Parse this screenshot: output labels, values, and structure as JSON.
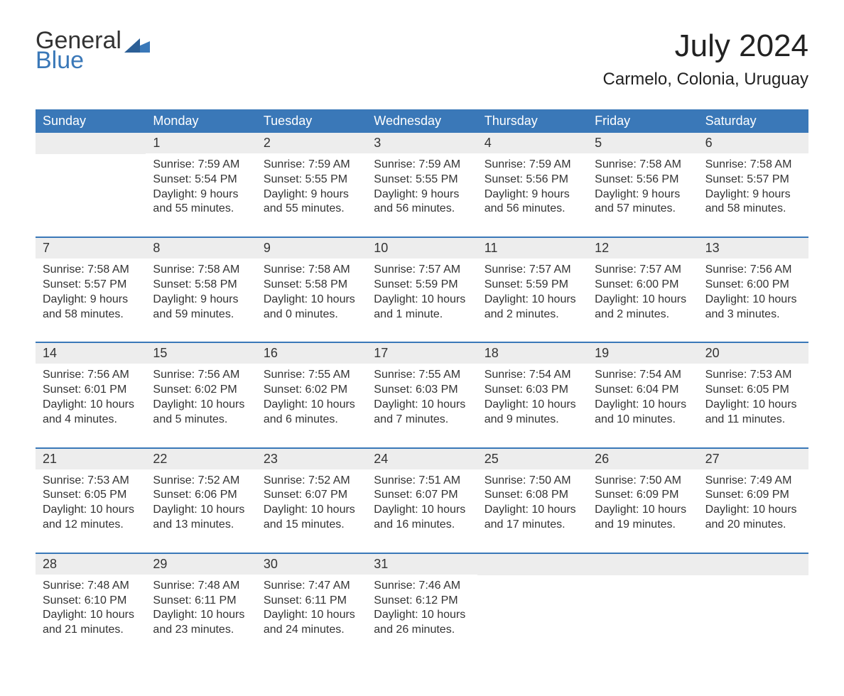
{
  "colors": {
    "accent": "#3a78b8",
    "header_text": "#ffffff",
    "daynum_bg": "#ededed",
    "text": "#333333",
    "logo_general": "#333333",
    "logo_blue": "#3a78b8",
    "background": "#ffffff"
  },
  "typography": {
    "title_fontsize": 44,
    "subtitle_fontsize": 24,
    "dayheader_fontsize": 18,
    "daynum_fontsize": 18,
    "body_fontsize": 16,
    "logo_fontsize": 34,
    "font_family": "Arial, Helvetica, sans-serif"
  },
  "logo": {
    "part1": "General",
    "part2": "Blue"
  },
  "title": "July 2024",
  "subtitle": "Carmelo, Colonia, Uruguay",
  "dayHeaders": [
    "Sunday",
    "Monday",
    "Tuesday",
    "Wednesday",
    "Thursday",
    "Friday",
    "Saturday"
  ],
  "weeks": [
    [
      {
        "blank": true
      },
      {
        "num": "1",
        "sunrise": "Sunrise: 7:59 AM",
        "sunset": "Sunset: 5:54 PM",
        "dl1": "Daylight: 9 hours",
        "dl2": "and 55 minutes."
      },
      {
        "num": "2",
        "sunrise": "Sunrise: 7:59 AM",
        "sunset": "Sunset: 5:55 PM",
        "dl1": "Daylight: 9 hours",
        "dl2": "and 55 minutes."
      },
      {
        "num": "3",
        "sunrise": "Sunrise: 7:59 AM",
        "sunset": "Sunset: 5:55 PM",
        "dl1": "Daylight: 9 hours",
        "dl2": "and 56 minutes."
      },
      {
        "num": "4",
        "sunrise": "Sunrise: 7:59 AM",
        "sunset": "Sunset: 5:56 PM",
        "dl1": "Daylight: 9 hours",
        "dl2": "and 56 minutes."
      },
      {
        "num": "5",
        "sunrise": "Sunrise: 7:58 AM",
        "sunset": "Sunset: 5:56 PM",
        "dl1": "Daylight: 9 hours",
        "dl2": "and 57 minutes."
      },
      {
        "num": "6",
        "sunrise": "Sunrise: 7:58 AM",
        "sunset": "Sunset: 5:57 PM",
        "dl1": "Daylight: 9 hours",
        "dl2": "and 58 minutes."
      }
    ],
    [
      {
        "num": "7",
        "sunrise": "Sunrise: 7:58 AM",
        "sunset": "Sunset: 5:57 PM",
        "dl1": "Daylight: 9 hours",
        "dl2": "and 58 minutes."
      },
      {
        "num": "8",
        "sunrise": "Sunrise: 7:58 AM",
        "sunset": "Sunset: 5:58 PM",
        "dl1": "Daylight: 9 hours",
        "dl2": "and 59 minutes."
      },
      {
        "num": "9",
        "sunrise": "Sunrise: 7:58 AM",
        "sunset": "Sunset: 5:58 PM",
        "dl1": "Daylight: 10 hours",
        "dl2": "and 0 minutes."
      },
      {
        "num": "10",
        "sunrise": "Sunrise: 7:57 AM",
        "sunset": "Sunset: 5:59 PM",
        "dl1": "Daylight: 10 hours",
        "dl2": "and 1 minute."
      },
      {
        "num": "11",
        "sunrise": "Sunrise: 7:57 AM",
        "sunset": "Sunset: 5:59 PM",
        "dl1": "Daylight: 10 hours",
        "dl2": "and 2 minutes."
      },
      {
        "num": "12",
        "sunrise": "Sunrise: 7:57 AM",
        "sunset": "Sunset: 6:00 PM",
        "dl1": "Daylight: 10 hours",
        "dl2": "and 2 minutes."
      },
      {
        "num": "13",
        "sunrise": "Sunrise: 7:56 AM",
        "sunset": "Sunset: 6:00 PM",
        "dl1": "Daylight: 10 hours",
        "dl2": "and 3 minutes."
      }
    ],
    [
      {
        "num": "14",
        "sunrise": "Sunrise: 7:56 AM",
        "sunset": "Sunset: 6:01 PM",
        "dl1": "Daylight: 10 hours",
        "dl2": "and 4 minutes."
      },
      {
        "num": "15",
        "sunrise": "Sunrise: 7:56 AM",
        "sunset": "Sunset: 6:02 PM",
        "dl1": "Daylight: 10 hours",
        "dl2": "and 5 minutes."
      },
      {
        "num": "16",
        "sunrise": "Sunrise: 7:55 AM",
        "sunset": "Sunset: 6:02 PM",
        "dl1": "Daylight: 10 hours",
        "dl2": "and 6 minutes."
      },
      {
        "num": "17",
        "sunrise": "Sunrise: 7:55 AM",
        "sunset": "Sunset: 6:03 PM",
        "dl1": "Daylight: 10 hours",
        "dl2": "and 7 minutes."
      },
      {
        "num": "18",
        "sunrise": "Sunrise: 7:54 AM",
        "sunset": "Sunset: 6:03 PM",
        "dl1": "Daylight: 10 hours",
        "dl2": "and 9 minutes."
      },
      {
        "num": "19",
        "sunrise": "Sunrise: 7:54 AM",
        "sunset": "Sunset: 6:04 PM",
        "dl1": "Daylight: 10 hours",
        "dl2": "and 10 minutes."
      },
      {
        "num": "20",
        "sunrise": "Sunrise: 7:53 AM",
        "sunset": "Sunset: 6:05 PM",
        "dl1": "Daylight: 10 hours",
        "dl2": "and 11 minutes."
      }
    ],
    [
      {
        "num": "21",
        "sunrise": "Sunrise: 7:53 AM",
        "sunset": "Sunset: 6:05 PM",
        "dl1": "Daylight: 10 hours",
        "dl2": "and 12 minutes."
      },
      {
        "num": "22",
        "sunrise": "Sunrise: 7:52 AM",
        "sunset": "Sunset: 6:06 PM",
        "dl1": "Daylight: 10 hours",
        "dl2": "and 13 minutes."
      },
      {
        "num": "23",
        "sunrise": "Sunrise: 7:52 AM",
        "sunset": "Sunset: 6:07 PM",
        "dl1": "Daylight: 10 hours",
        "dl2": "and 15 minutes."
      },
      {
        "num": "24",
        "sunrise": "Sunrise: 7:51 AM",
        "sunset": "Sunset: 6:07 PM",
        "dl1": "Daylight: 10 hours",
        "dl2": "and 16 minutes."
      },
      {
        "num": "25",
        "sunrise": "Sunrise: 7:50 AM",
        "sunset": "Sunset: 6:08 PM",
        "dl1": "Daylight: 10 hours",
        "dl2": "and 17 minutes."
      },
      {
        "num": "26",
        "sunrise": "Sunrise: 7:50 AM",
        "sunset": "Sunset: 6:09 PM",
        "dl1": "Daylight: 10 hours",
        "dl2": "and 19 minutes."
      },
      {
        "num": "27",
        "sunrise": "Sunrise: 7:49 AM",
        "sunset": "Sunset: 6:09 PM",
        "dl1": "Daylight: 10 hours",
        "dl2": "and 20 minutes."
      }
    ],
    [
      {
        "num": "28",
        "sunrise": "Sunrise: 7:48 AM",
        "sunset": "Sunset: 6:10 PM",
        "dl1": "Daylight: 10 hours",
        "dl2": "and 21 minutes."
      },
      {
        "num": "29",
        "sunrise": "Sunrise: 7:48 AM",
        "sunset": "Sunset: 6:11 PM",
        "dl1": "Daylight: 10 hours",
        "dl2": "and 23 minutes."
      },
      {
        "num": "30",
        "sunrise": "Sunrise: 7:47 AM",
        "sunset": "Sunset: 6:11 PM",
        "dl1": "Daylight: 10 hours",
        "dl2": "and 24 minutes."
      },
      {
        "num": "31",
        "sunrise": "Sunrise: 7:46 AM",
        "sunset": "Sunset: 6:12 PM",
        "dl1": "Daylight: 10 hours",
        "dl2": "and 26 minutes."
      },
      {
        "blank": true
      },
      {
        "blank": true
      },
      {
        "blank": true
      }
    ]
  ]
}
